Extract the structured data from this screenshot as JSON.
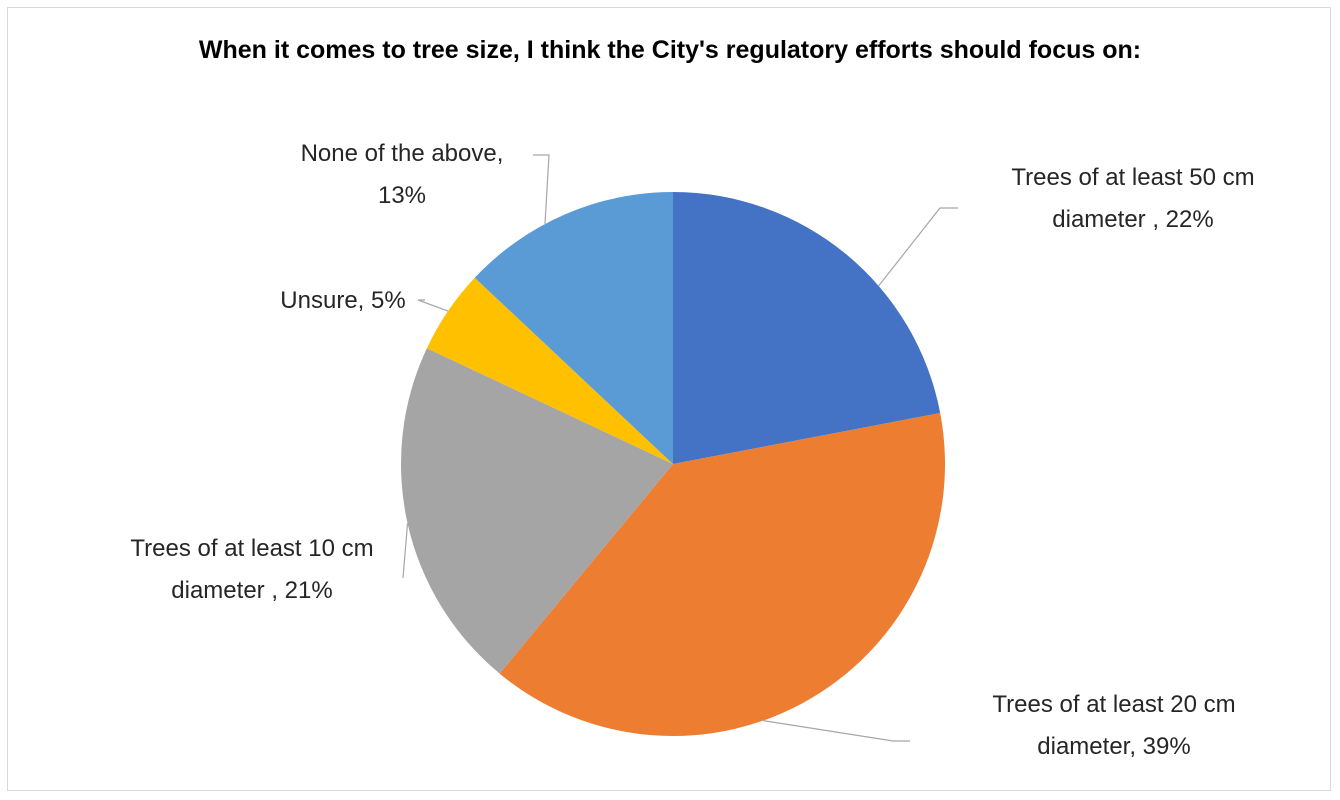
{
  "chart_data": {
    "type": "pie",
    "title": "When it comes to tree size, I think the City's regulatory efforts should focus on:",
    "slices": [
      {
        "label": "Trees of at least 50 cm diameter ,",
        "value": 22,
        "value_label": "22%",
        "color": "#4472C4"
      },
      {
        "label": "Trees of at least 20 cm diameter,",
        "value": 39,
        "value_label": "39%",
        "color": "#ED7D31"
      },
      {
        "label": "Trees of at least 10 cm diameter ,",
        "value": 21,
        "value_label": "21%",
        "color": "#A5A5A5"
      },
      {
        "label": "Unsure,",
        "value": 5,
        "value_label": "5%",
        "color": "#FFC000"
      },
      {
        "label": "None of the above,",
        "value": 13,
        "value_label": "13%",
        "color": "#5B9BD5"
      }
    ],
    "start_angle": "12 o'clock",
    "direction": "clockwise",
    "legend": "none",
    "data_labels": "outside with leader lines"
  }
}
